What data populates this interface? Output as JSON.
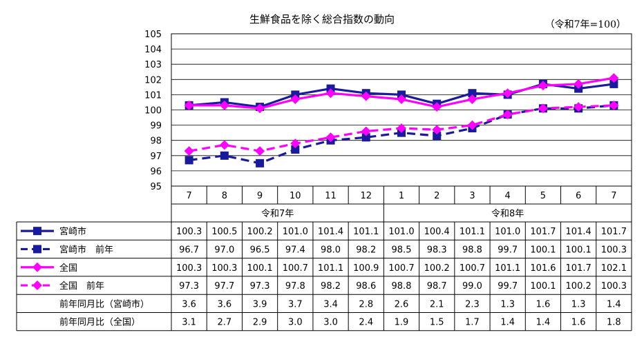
{
  "chart_data": {
    "type": "line",
    "title": "生鮮食品を除く総合指数の動向",
    "unit_note": "（令和7年=100）",
    "categories": [
      "7",
      "8",
      "9",
      "10",
      "11",
      "12",
      "1",
      "2",
      "3",
      "4",
      "5",
      "6",
      "7"
    ],
    "year_groups": [
      {
        "label": "令和7年",
        "start": 0,
        "end": 5
      },
      {
        "label": "令和8年",
        "start": 6,
        "end": 12
      }
    ],
    "ylim": [
      95,
      105
    ],
    "yticks": [
      95,
      96,
      97,
      98,
      99,
      100,
      101,
      102,
      103,
      104,
      105
    ],
    "grid": true,
    "series": [
      {
        "name": "宮崎市",
        "color": "#1a1a9c",
        "dash": false,
        "marker": "square",
        "values": [
          100.3,
          100.5,
          100.2,
          101.0,
          101.4,
          101.1,
          101.0,
          100.4,
          101.1,
          101.0,
          101.7,
          101.4,
          101.7
        ],
        "display": [
          "100.3",
          "100.5",
          "100.2",
          "101.0",
          "101.4",
          "101.1",
          "101.0",
          "100.4",
          "101.1",
          "101.0",
          "101.7",
          "101.4",
          "101.7"
        ]
      },
      {
        "name": "宮崎市　前年",
        "color": "#1a1a9c",
        "dash": true,
        "marker": "square",
        "values": [
          96.7,
          97.0,
          96.5,
          97.4,
          98.0,
          98.2,
          98.5,
          98.3,
          98.8,
          99.7,
          100.1,
          100.1,
          100.3
        ],
        "display": [
          "96.7",
          "97.0",
          "96.5",
          "97.4",
          "98.0",
          "98.2",
          "98.5",
          "98.3",
          "98.8",
          "99.7",
          "100.1",
          "100.1",
          "100.3"
        ]
      },
      {
        "name": "全国",
        "color": "#ff00ff",
        "dash": false,
        "marker": "diamond",
        "values": [
          100.3,
          100.3,
          100.1,
          100.7,
          101.1,
          100.9,
          100.7,
          100.2,
          100.7,
          101.1,
          101.6,
          101.7,
          102.1
        ],
        "display": [
          "100.3",
          "100.3",
          "100.1",
          "100.7",
          "101.1",
          "100.9",
          "100.7",
          "100.2",
          "100.7",
          "101.1",
          "101.6",
          "101.7",
          "102.1"
        ]
      },
      {
        "name": "全国　前年",
        "color": "#ff00ff",
        "dash": true,
        "marker": "diamond",
        "values": [
          97.3,
          97.7,
          97.3,
          97.8,
          98.2,
          98.6,
          98.8,
          98.7,
          99.0,
          99.7,
          100.1,
          100.2,
          100.3
        ],
        "display": [
          "97.3",
          "97.7",
          "97.3",
          "97.8",
          "98.2",
          "98.6",
          "98.8",
          "98.7",
          "99.0",
          "99.7",
          "100.1",
          "100.2",
          "100.3"
        ]
      }
    ],
    "extra_rows": [
      {
        "label": "前年同月比（宮崎市）",
        "display": [
          "3.6",
          "3.6",
          "3.9",
          "3.7",
          "3.4",
          "2.8",
          "2.6",
          "2.1",
          "2.3",
          "1.3",
          "1.6",
          "1.3",
          "1.4"
        ]
      },
      {
        "label": "前年同月比（全国）",
        "display": [
          "3.1",
          "2.7",
          "2.9",
          "3.0",
          "3.0",
          "2.4",
          "1.9",
          "1.5",
          "1.7",
          "1.4",
          "1.4",
          "1.6",
          "1.8"
        ]
      }
    ]
  }
}
